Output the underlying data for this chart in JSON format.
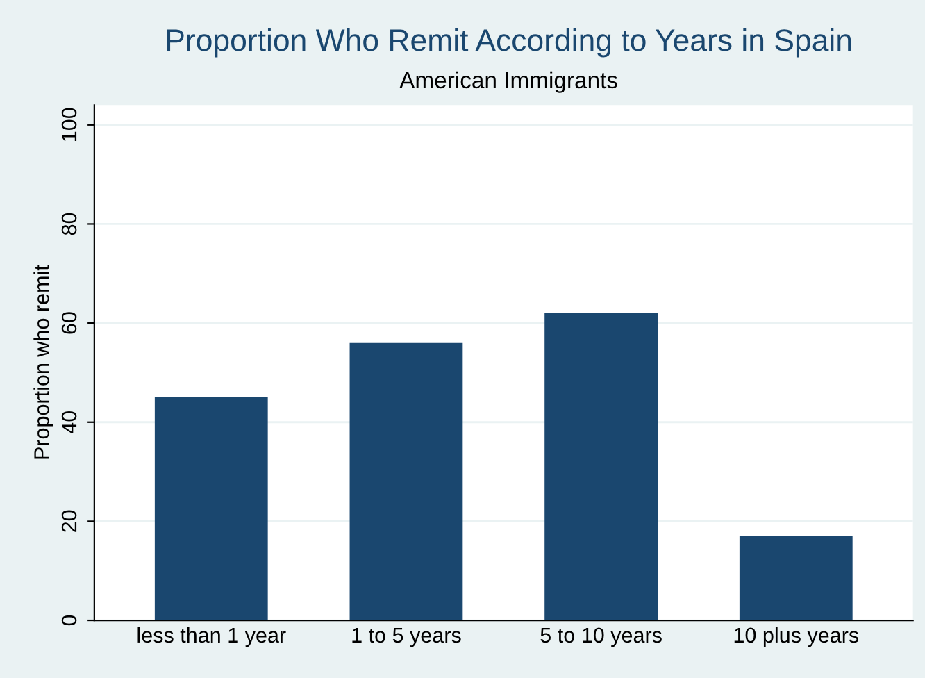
{
  "chart_data": {
    "type": "bar",
    "title": "Proportion Who Remit According to Years in Spain",
    "subtitle": "American Immigrants",
    "ylabel": "Proportion who remit",
    "categories": [
      "less than 1 year",
      "1 to 5 years",
      "5 to 10 years",
      "10 plus years"
    ],
    "values": [
      45,
      56,
      62,
      17
    ],
    "color": "#1a476f",
    "ylim": [
      0,
      104
    ],
    "yticks": [
      0,
      20,
      40,
      60,
      80,
      100
    ],
    "grid": "y"
  }
}
